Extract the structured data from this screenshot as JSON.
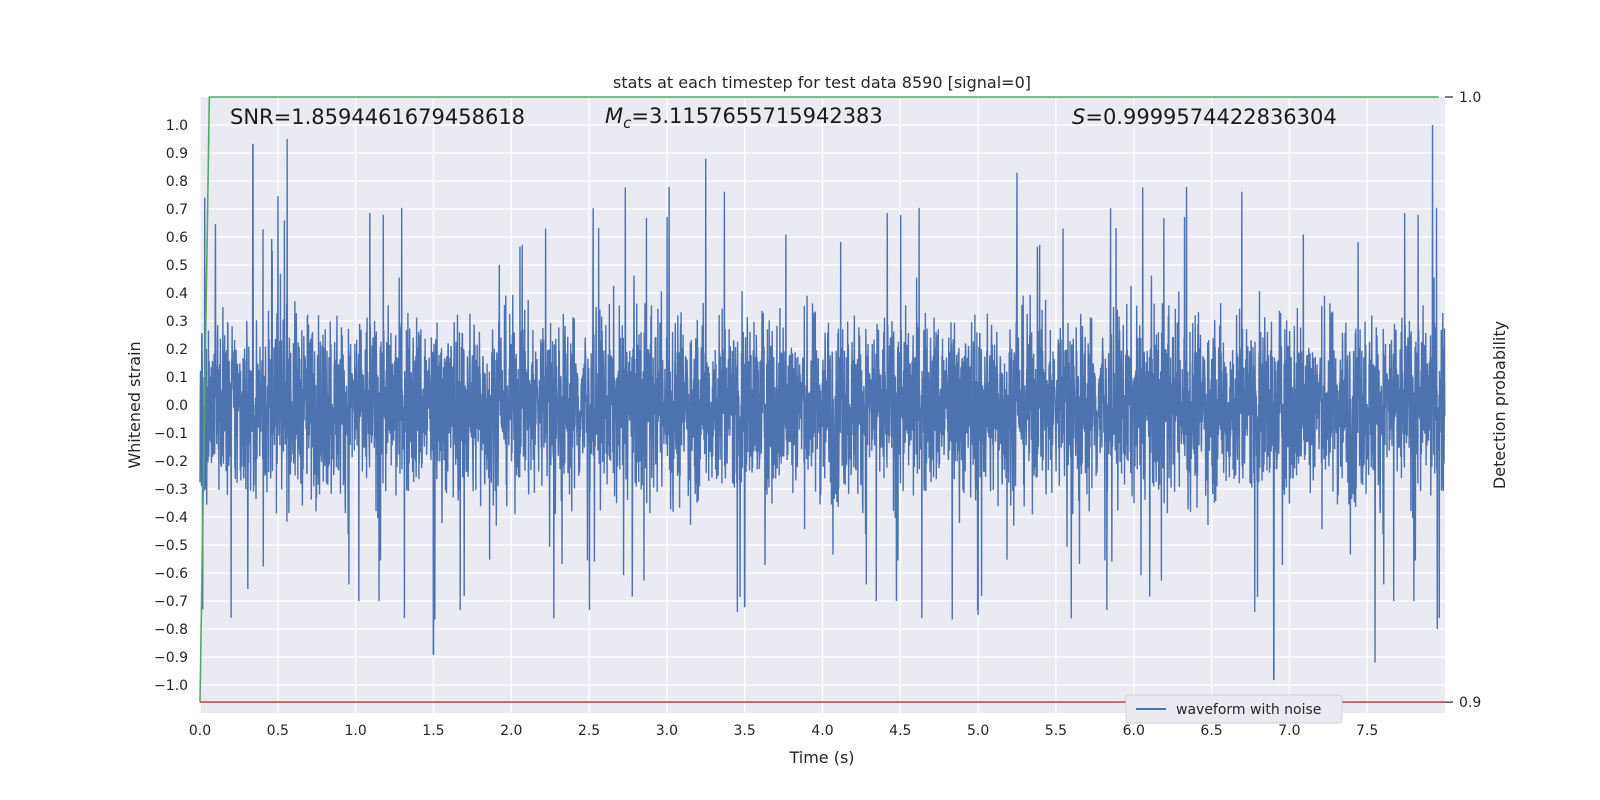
{
  "chart_data": {
    "type": "line",
    "title": "stats at each timestep for test data 8590 [signal=0]",
    "xlabel": "Time (s)",
    "ylabel": "Whitened strain",
    "y2label": "Detection probability",
    "xlim": [
      0.0,
      8.0
    ],
    "ylim": [
      -1.1,
      1.1
    ],
    "y2lim": [
      0.8982,
      1.0
    ],
    "x_ticks": [
      "0.0",
      "0.5",
      "1.0",
      "1.5",
      "2.0",
      "2.5",
      "3.0",
      "3.5",
      "4.0",
      "4.5",
      "5.0",
      "5.5",
      "6.0",
      "6.5",
      "7.0",
      "7.5"
    ],
    "x_tick_values": [
      0.0,
      0.5,
      1.0,
      1.5,
      2.0,
      2.5,
      3.0,
      3.5,
      4.0,
      4.5,
      5.0,
      5.5,
      6.0,
      6.5,
      7.0,
      7.5
    ],
    "y_ticks": [
      "1.0",
      "0.9",
      "0.8",
      "0.7",
      "0.6",
      "0.5",
      "0.4",
      "0.3",
      "0.2",
      "0.1",
      "0.0",
      "−0.1",
      "−0.2",
      "−0.3",
      "−0.4",
      "−0.5",
      "−0.6",
      "−0.7",
      "−0.8",
      "−0.9",
      "−1.0"
    ],
    "y_tick_values": [
      1.0,
      0.9,
      0.8,
      0.7,
      0.6,
      0.5,
      0.4,
      0.3,
      0.2,
      0.1,
      0.0,
      -0.1,
      -0.2,
      -0.3,
      -0.4,
      -0.5,
      -0.6,
      -0.7,
      -0.8,
      -0.9,
      -1.0
    ],
    "y2_ticks": [
      "1.0",
      "0.9"
    ],
    "y2_tick_values": [
      1.0,
      0.9
    ],
    "grid": true,
    "legend": {
      "position": "lower-right",
      "entries": [
        "waveform with noise"
      ]
    },
    "annotations": {
      "snr": "SNR=1.8594461679458618",
      "mc_symbol": "M",
      "mc_sub": "c",
      "mc_value": "=3.1157655715942383",
      "s_symbol": "S",
      "s_value": "=0.9999574422836304"
    },
    "series": [
      {
        "name": "waveform with noise",
        "axis": "left",
        "color": "#4c72b0",
        "duration": 8.0,
        "sample_rate": 2048,
        "amplitude_envelope": {
          "typical_min": -0.6,
          "typical_max": 0.7
        },
        "peaks": [
          {
            "x": 0.03,
            "y": 0.74
          },
          {
            "x": 0.34,
            "y": 0.93
          },
          {
            "x": 0.56,
            "y": 0.95
          },
          {
            "x": 0.2,
            "y": -0.76
          },
          {
            "x": 1.5,
            "y": -0.89
          },
          {
            "x": 3.25,
            "y": 0.88
          },
          {
            "x": 3.5,
            "y": -0.72
          },
          {
            "x": 5.0,
            "y": -0.75
          },
          {
            "x": 5.25,
            "y": 0.83
          },
          {
            "x": 6.9,
            "y": -0.98
          },
          {
            "x": 7.55,
            "y": -0.92
          },
          {
            "x": 7.92,
            "y": 1.0
          },
          {
            "x": 7.95,
            "y": -0.8
          }
        ]
      },
      {
        "name": "",
        "axis": "right",
        "color": "#55a868",
        "x": [
          0.0,
          0.06,
          7.96
        ],
        "values": [
          0.9,
          1.0,
          1.0
        ]
      },
      {
        "name": "",
        "axis": "right",
        "color": "#c44e52",
        "x": [
          0.0,
          8.0
        ],
        "values": [
          0.9,
          0.9
        ]
      }
    ],
    "colors": {
      "plot_bg": "#eaeaf2",
      "grid": "#ffffff",
      "text": "#262626"
    }
  }
}
